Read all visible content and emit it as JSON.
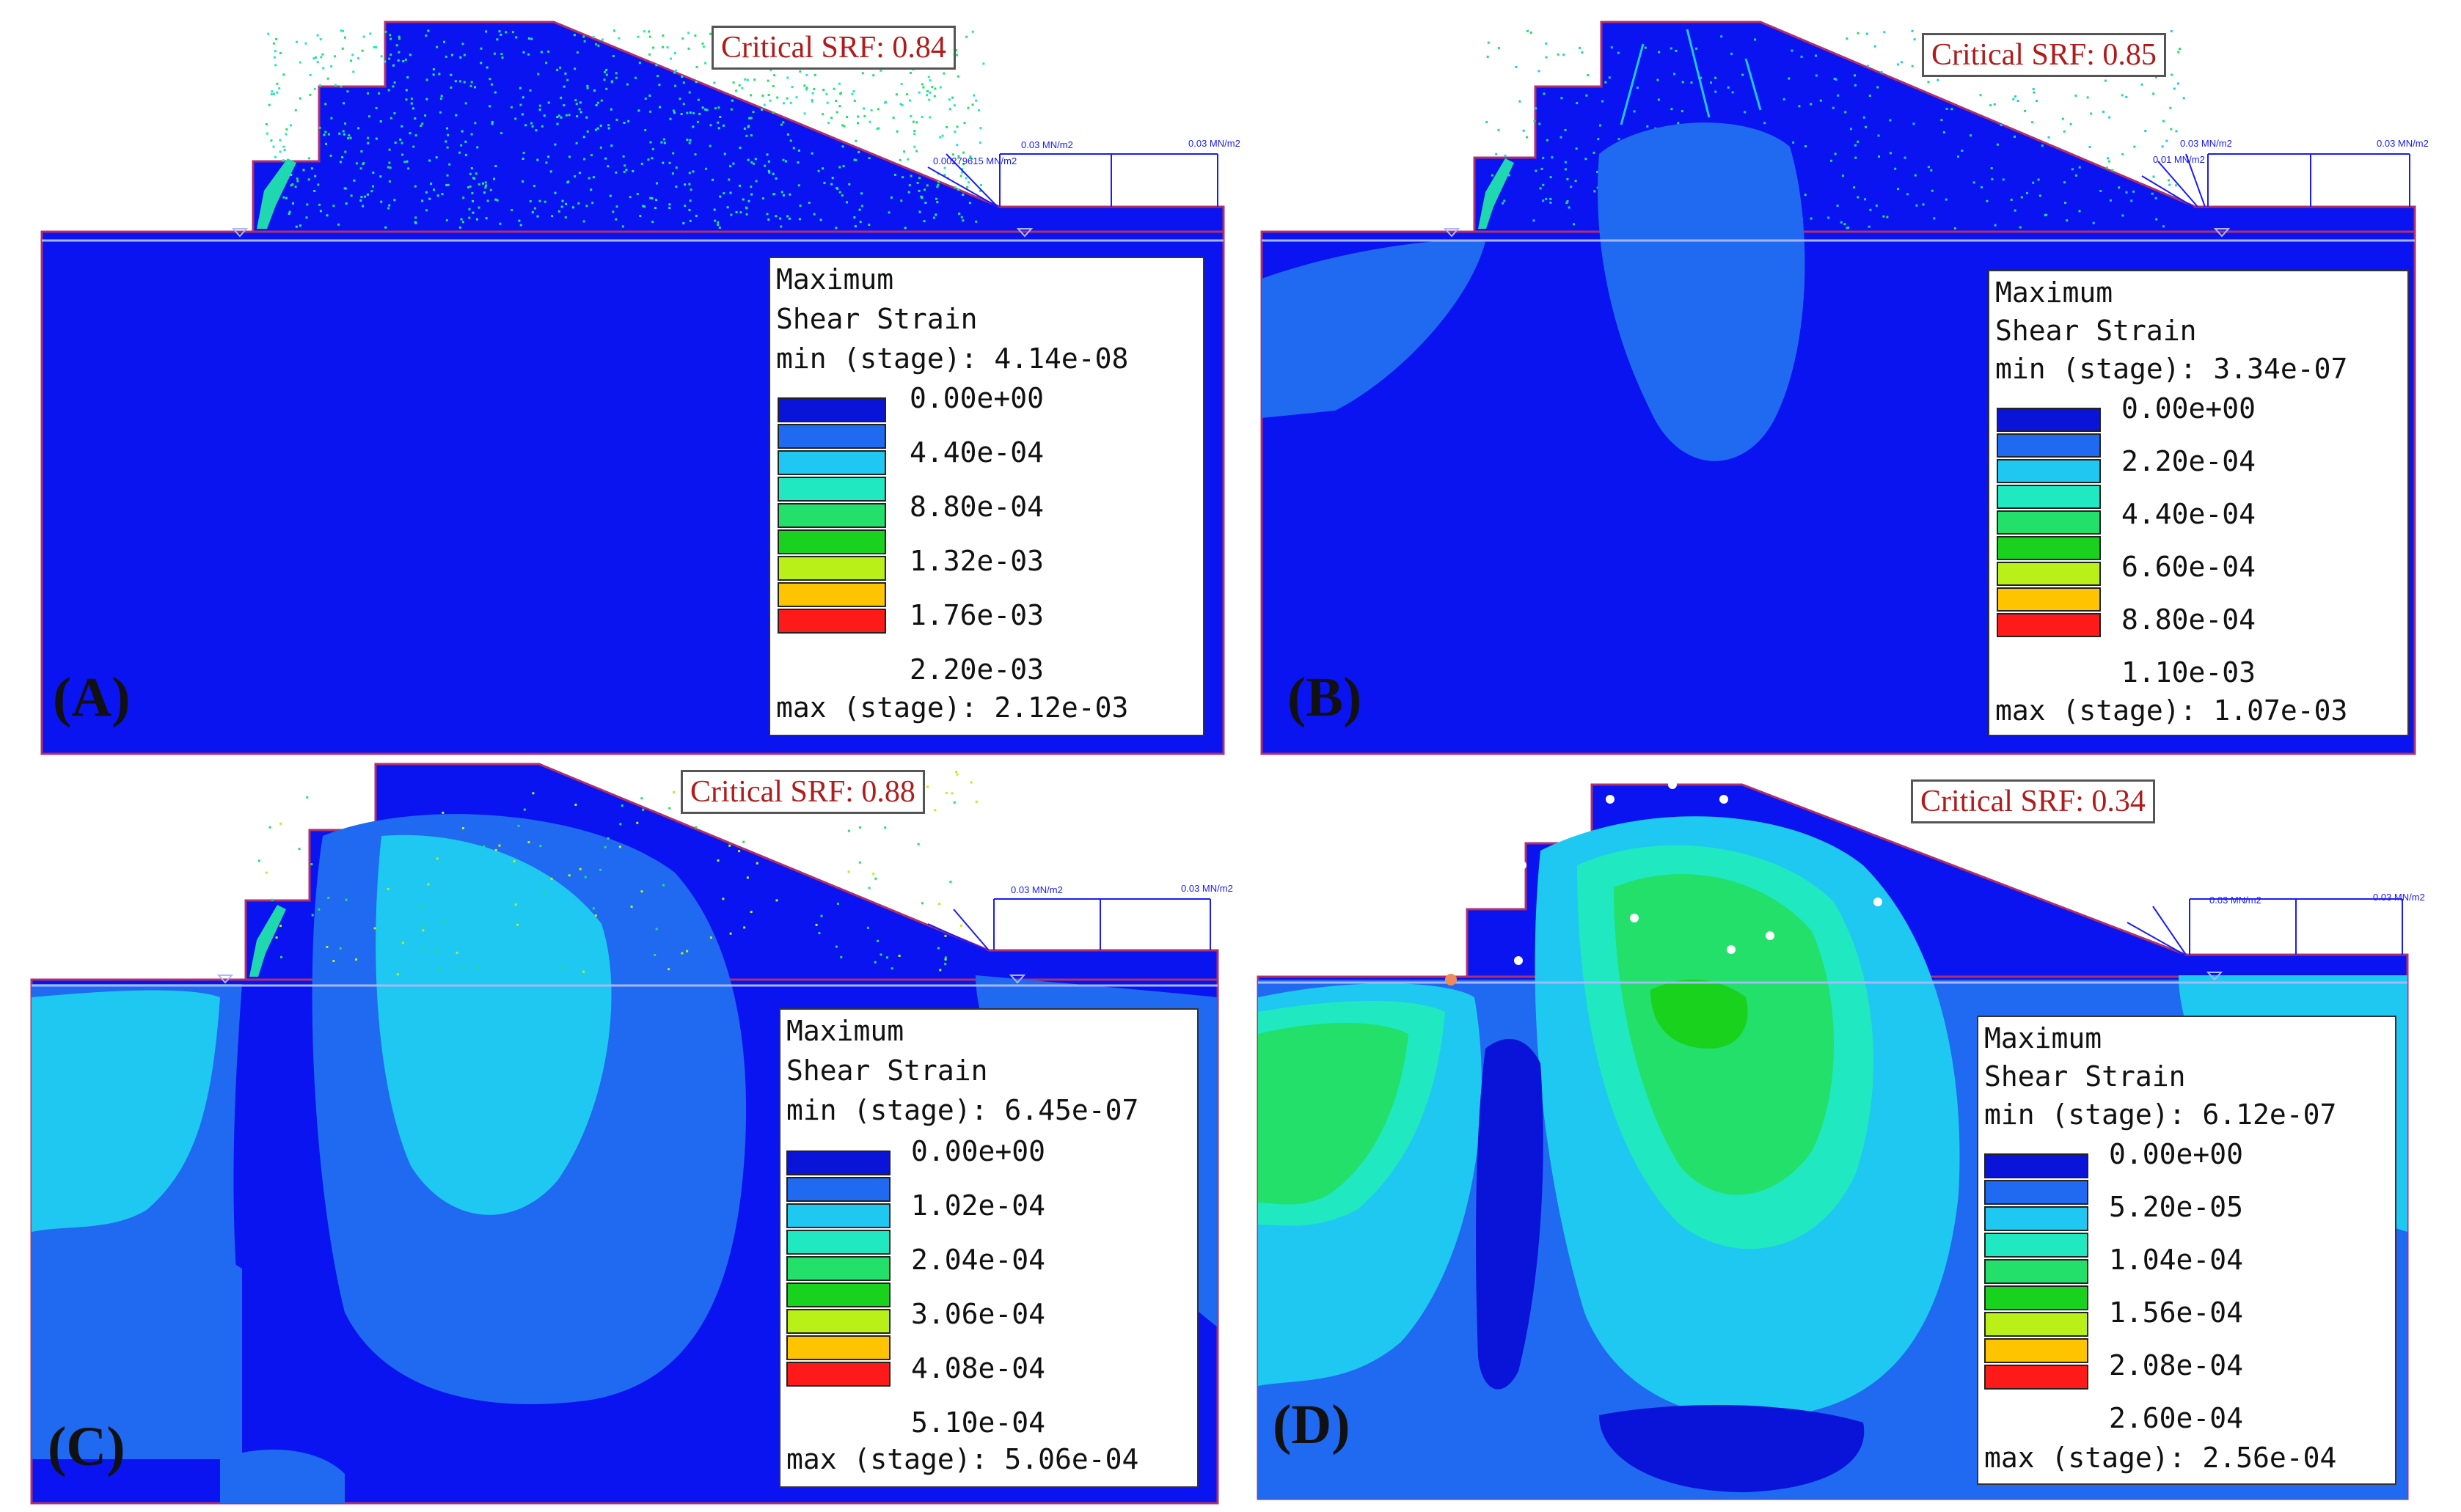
{
  "colors": {
    "background": "#ffffff",
    "model_blue": "#0a14f0",
    "border": "#b0306a",
    "water_line": "#a8b8ff",
    "load_arrow": "#1a1aff",
    "srf_text": "#b01c1c",
    "scale": [
      "#0a14d8",
      "#1f6af0",
      "#1ec8f0",
      "#20e8c0",
      "#22e06a",
      "#18d21e",
      "#b8f018",
      "#ffc400",
      "#ff1a1a"
    ]
  },
  "panels": [
    {
      "id": "A",
      "label": "(A)",
      "srf": "Critical SRF: 0.84",
      "loads": [
        "0.00279615 MN/m2",
        "0.03 MN/m2",
        "0.03 MN/m2"
      ],
      "legend": {
        "title1": "Maximum",
        "title2": "Shear Strain",
        "min": "min (stage): 4.14e-08",
        "ticks": [
          "0.00e+00",
          "4.40e-04",
          "8.80e-04",
          "1.32e-03",
          "1.76e-03",
          "2.20e-03"
        ],
        "max": "max (stage): 2.12e-03"
      }
    },
    {
      "id": "B",
      "label": "(B)",
      "srf": "Critical SRF: 0.85",
      "loads": [
        "0.01 MN/m2",
        "0.03 MN/m2",
        "0.03 MN/m2"
      ],
      "legend": {
        "title1": "Maximum",
        "title2": "Shear Strain",
        "min": "min (stage): 3.34e-07",
        "ticks": [
          "0.00e+00",
          "2.20e-04",
          "4.40e-04",
          "6.60e-04",
          "8.80e-04",
          "1.10e-03"
        ],
        "max": "max (stage): 1.07e-03"
      }
    },
    {
      "id": "C",
      "label": "(C)",
      "srf": "Critical SRF: 0.88",
      "loads": [
        "0.03 MN/m2",
        "0.03 MN/m2"
      ],
      "legend": {
        "title1": "Maximum",
        "title2": "Shear Strain",
        "min": "min (stage): 6.45e-07",
        "ticks": [
          "0.00e+00",
          "1.02e-04",
          "2.04e-04",
          "3.06e-04",
          "4.08e-04",
          "5.10e-04"
        ],
        "max": "max (stage): 5.06e-04"
      }
    },
    {
      "id": "D",
      "label": "(D)",
      "srf": "Critical SRF: 0.34",
      "loads": [
        "0.03 MN/m2",
        "0.03 MN/m2"
      ],
      "legend": {
        "title1": "Maximum",
        "title2": "Shear Strain",
        "min": "min (stage): 6.12e-07",
        "ticks": [
          "0.00e+00",
          "5.20e-05",
          "1.04e-04",
          "1.56e-04",
          "2.08e-04",
          "2.60e-04"
        ],
        "max": "max (stage): 2.56e-04"
      }
    }
  ]
}
